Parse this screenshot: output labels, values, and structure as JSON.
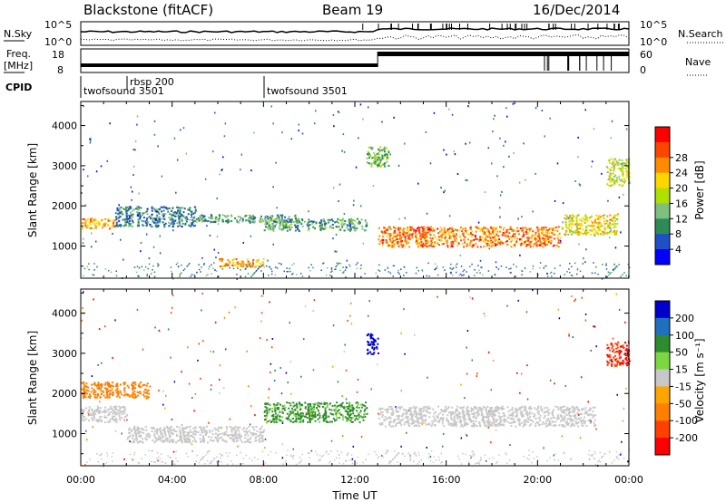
{
  "chart_data": [
    {
      "type": "line",
      "panel": "header",
      "title_left": "Blackstone (fitACF)",
      "title_center": "Beam 19",
      "title_right": "16/Dec/2014",
      "left_label": "N.Sky",
      "right_label": "N.Search",
      "y_ticks_left": [
        "10^5",
        "10^0"
      ],
      "y_ticks_right": [
        "10^5",
        "10^0"
      ]
    },
    {
      "type": "line",
      "panel": "frequency",
      "left_label_lines": [
        "Freq.",
        "[MHz]"
      ],
      "right_label": "Nave",
      "y_ticks_left": [
        "18",
        "8"
      ],
      "y_ticks_right": [
        "60",
        "0"
      ]
    },
    {
      "type": "table",
      "panel": "cpid",
      "label": "CPID",
      "entries": [
        {
          "time": "00:00",
          "name": "twofsound 3501"
        },
        {
          "time": "02:00",
          "name": "rbsp 200"
        },
        {
          "time": "08:00",
          "name": "twofsound 3501"
        }
      ]
    },
    {
      "type": "heatmap",
      "panel": "power",
      "ylabel": "Slant Range [km]",
      "y_ticks": [
        1000,
        2000,
        3000,
        4000
      ],
      "ylim": [
        200,
        4600
      ],
      "xlim": [
        "00:00",
        "24:00"
      ],
      "colorbar_label": "Power [dB]",
      "colorbar_ticks": [
        4,
        8,
        12,
        16,
        20,
        24,
        28
      ],
      "colorbar_colors": [
        "#0000ff",
        "#2050c8",
        "#2e8b57",
        "#7fbf7f",
        "#b0e000",
        "#ffd700",
        "#ff8c00",
        "#ff4500",
        "#ff0000"
      ],
      "features": [
        {
          "t": [
            0.0,
            1.5
          ],
          "r": [
            1450,
            1700
          ],
          "value": 24
        },
        {
          "t": [
            1.5,
            5.0
          ],
          "r": [
            1500,
            2000
          ],
          "value": 10
        },
        {
          "t": [
            5.0,
            9.5
          ],
          "r": [
            1600,
            1800
          ],
          "value": 12
        },
        {
          "t": [
            6.0,
            8.0
          ],
          "r": [
            500,
            700
          ],
          "value": 24
        },
        {
          "t": [
            8.0,
            12.5
          ],
          "r": [
            1400,
            1700
          ],
          "value": 12
        },
        {
          "t": [
            12.5,
            13.5
          ],
          "r": [
            3000,
            3500
          ],
          "value": 14
        },
        {
          "t": [
            13.0,
            21.0
          ],
          "r": [
            1000,
            1500
          ],
          "value": 26
        },
        {
          "t": [
            21.0,
            23.5
          ],
          "r": [
            1300,
            1800
          ],
          "value": 20
        },
        {
          "t": [
            23.0,
            24.0
          ],
          "r": [
            2500,
            3200
          ],
          "value": 18
        }
      ]
    },
    {
      "type": "heatmap",
      "panel": "velocity",
      "ylabel": "Slant Range [km]",
      "xlabel": "Time UT",
      "y_ticks": [
        1000,
        2000,
        3000,
        4000
      ],
      "ylim": [
        200,
        4600
      ],
      "x_ticks": [
        "00:00",
        "04:00",
        "08:00",
        "12:00",
        "16:00",
        "20:00",
        "00:00"
      ],
      "xlim": [
        "00:00",
        "24:00"
      ],
      "colorbar_label": "Velocity [m s⁻¹]",
      "colorbar_ticks": [
        200,
        100,
        50,
        15,
        -15,
        -50,
        -100,
        -200
      ],
      "colorbar_colors": [
        "#0000cc",
        "#2070c0",
        "#2e8b2e",
        "#7cd840",
        "#c8c8c8",
        "#ffa500",
        "#ff7f00",
        "#ff4000",
        "#ff0000"
      ],
      "features": [
        {
          "t": [
            0.0,
            2.0
          ],
          "r": [
            1300,
            1700
          ],
          "value": 0
        },
        {
          "t": [
            0.0,
            3.0
          ],
          "r": [
            1900,
            2300
          ],
          "value": -60
        },
        {
          "t": [
            2.0,
            8.0
          ],
          "r": [
            800,
            1200
          ],
          "value": 0
        },
        {
          "t": [
            8.0,
            12.5
          ],
          "r": [
            1300,
            1800
          ],
          "value": 40
        },
        {
          "t": [
            12.5,
            13.0
          ],
          "r": [
            3000,
            3500
          ],
          "value": 200
        },
        {
          "t": [
            13.0,
            22.5
          ],
          "r": [
            1200,
            1700
          ],
          "value": 0
        },
        {
          "t": [
            23.0,
            24.0
          ],
          "r": [
            2700,
            3300
          ],
          "value": -150
        }
      ]
    }
  ]
}
